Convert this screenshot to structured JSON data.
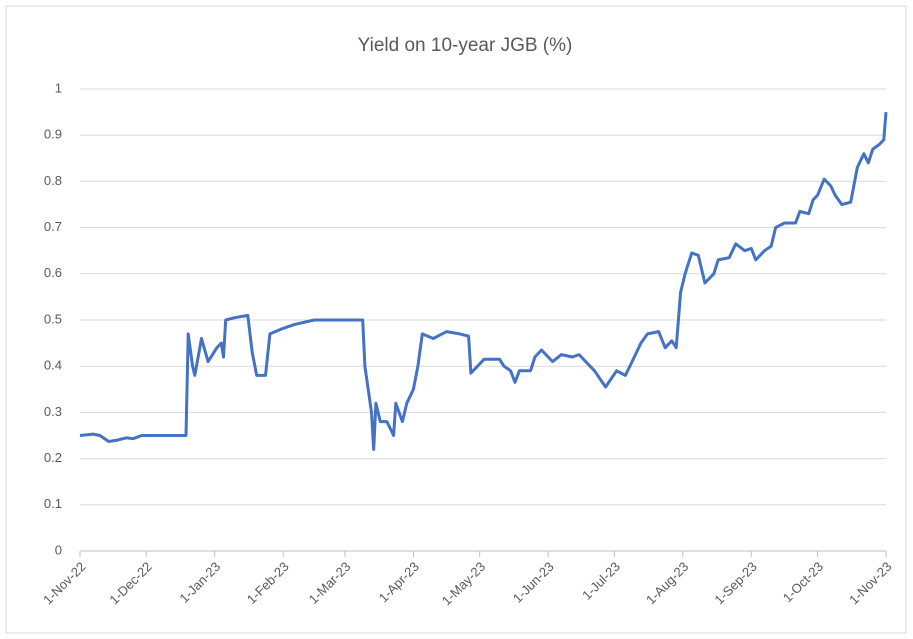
{
  "chart_data": {
    "type": "line",
    "title": "Yield on 10-year JGB (%)",
    "x": [
      "2022-11-01",
      "2022-11-07",
      "2022-11-10",
      "2022-11-14",
      "2022-11-18",
      "2022-11-22",
      "2022-11-25",
      "2022-11-29",
      "2022-12-05",
      "2022-12-12",
      "2022-12-19",
      "2022-12-20",
      "2022-12-22",
      "2022-12-23",
      "2022-12-26",
      "2022-12-29",
      "2023-01-02",
      "2023-01-04",
      "2023-01-05",
      "2023-01-06",
      "2023-01-10",
      "2023-01-16",
      "2023-01-18",
      "2023-01-20",
      "2023-01-24",
      "2023-01-26",
      "2023-01-31",
      "2023-02-06",
      "2023-02-15",
      "2023-03-09",
      "2023-03-10",
      "2023-03-13",
      "2023-03-14",
      "2023-03-15",
      "2023-03-17",
      "2023-03-20",
      "2023-03-22",
      "2023-03-23",
      "2023-03-24",
      "2023-03-27",
      "2023-03-29",
      "2023-04-01",
      "2023-04-03",
      "2023-04-05",
      "2023-04-10",
      "2023-04-16",
      "2023-04-22",
      "2023-04-26",
      "2023-04-27",
      "2023-04-30",
      "2023-05-03",
      "2023-05-10",
      "2023-05-12",
      "2023-05-15",
      "2023-05-17",
      "2023-05-19",
      "2023-05-24",
      "2023-05-26",
      "2023-05-29",
      "2023-06-03",
      "2023-06-07",
      "2023-06-12",
      "2023-06-15",
      "2023-06-18",
      "2023-06-22",
      "2023-06-27",
      "2023-07-02",
      "2023-07-06",
      "2023-07-09",
      "2023-07-13",
      "2023-07-16",
      "2023-07-21",
      "2023-07-24",
      "2023-07-27",
      "2023-07-29",
      "2023-07-31",
      "2023-08-02",
      "2023-08-05",
      "2023-08-08",
      "2023-08-11",
      "2023-08-15",
      "2023-08-17",
      "2023-08-22",
      "2023-08-25",
      "2023-08-29",
      "2023-09-01",
      "2023-09-03",
      "2023-09-07",
      "2023-09-10",
      "2023-09-12",
      "2023-09-16",
      "2023-09-21",
      "2023-09-23",
      "2023-09-27",
      "2023-09-29",
      "2023-10-01",
      "2023-10-04",
      "2023-10-07",
      "2023-10-09",
      "2023-10-12",
      "2023-10-16",
      "2023-10-19",
      "2023-10-22",
      "2023-10-24",
      "2023-10-26",
      "2023-10-29",
      "2023-10-31",
      "2023-11-01"
    ],
    "series": [
      {
        "name": "Yield on 10-year JGB",
        "color": "#4472c4",
        "values": [
          0.25,
          0.253,
          0.25,
          0.237,
          0.24,
          0.245,
          0.243,
          0.25,
          0.25,
          0.25,
          0.25,
          0.47,
          0.4,
          0.38,
          0.46,
          0.41,
          0.44,
          0.45,
          0.42,
          0.5,
          0.505,
          0.51,
          0.43,
          0.38,
          0.38,
          0.47,
          0.48,
          0.49,
          0.5,
          0.5,
          0.4,
          0.3,
          0.22,
          0.32,
          0.28,
          0.28,
          0.26,
          0.25,
          0.32,
          0.28,
          0.32,
          0.35,
          0.4,
          0.47,
          0.46,
          0.475,
          0.47,
          0.465,
          0.385,
          0.4,
          0.415,
          0.415,
          0.4,
          0.39,
          0.365,
          0.39,
          0.39,
          0.42,
          0.435,
          0.41,
          0.425,
          0.42,
          0.425,
          0.41,
          0.39,
          0.355,
          0.39,
          0.38,
          0.41,
          0.45,
          0.47,
          0.475,
          0.44,
          0.455,
          0.44,
          0.56,
          0.6,
          0.645,
          0.64,
          0.58,
          0.6,
          0.63,
          0.635,
          0.665,
          0.65,
          0.655,
          0.63,
          0.65,
          0.66,
          0.7,
          0.71,
          0.71,
          0.735,
          0.73,
          0.76,
          0.77,
          0.805,
          0.79,
          0.77,
          0.75,
          0.755,
          0.83,
          0.86,
          0.84,
          0.87,
          0.88,
          0.89,
          0.95
        ]
      }
    ],
    "xlim": [
      "2022-11-01",
      "2023-11-01"
    ],
    "xticks": [
      {
        "value": "2022-11-01",
        "label": "1-Nov-22"
      },
      {
        "value": "2022-12-01",
        "label": "1-Dec-22"
      },
      {
        "value": "2023-01-01",
        "label": "1-Jan-23"
      },
      {
        "value": "2023-02-01",
        "label": "1-Feb-23"
      },
      {
        "value": "2023-03-01",
        "label": "1-Mar-23"
      },
      {
        "value": "2023-04-01",
        "label": "1-Apr-23"
      },
      {
        "value": "2023-05-01",
        "label": "1-May-23"
      },
      {
        "value": "2023-06-01",
        "label": "1-Jun-23"
      },
      {
        "value": "2023-07-01",
        "label": "1-Jul-23"
      },
      {
        "value": "2023-08-01",
        "label": "1-Aug-23"
      },
      {
        "value": "2023-09-01",
        "label": "1-Sep-23"
      },
      {
        "value": "2023-10-01",
        "label": "1-Oct-23"
      },
      {
        "value": "2023-11-01",
        "label": "1-Nov-23"
      }
    ],
    "ylim": [
      0,
      1
    ],
    "yticks": [
      0,
      0.1,
      0.2,
      0.3,
      0.4,
      0.5,
      0.6,
      0.7,
      0.8,
      0.9,
      1
    ],
    "grid": true
  }
}
